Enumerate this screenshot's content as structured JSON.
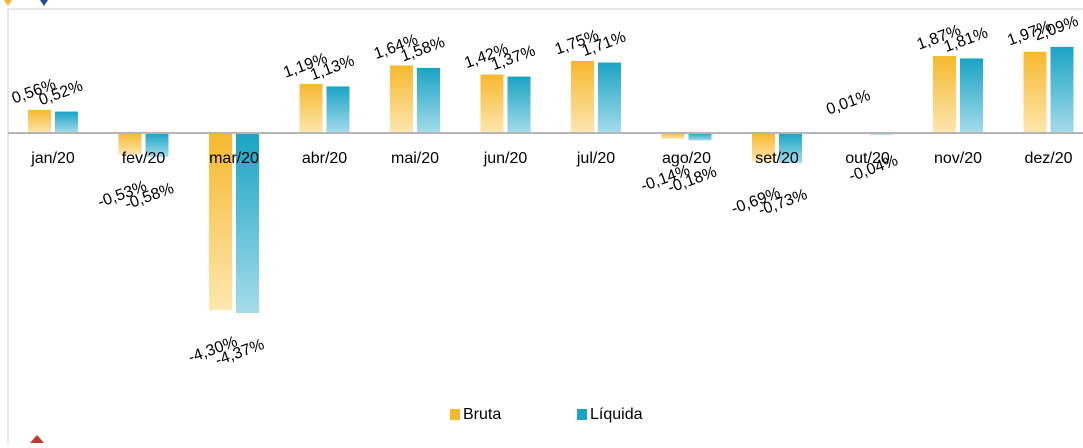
{
  "chart_data": {
    "type": "bar",
    "categories": [
      "jan/20",
      "fev/20",
      "mar/20",
      "abr/20",
      "mai/20",
      "jun/20",
      "jul/20",
      "ago/20",
      "set/20",
      "out/20",
      "nov/20",
      "dez/20"
    ],
    "series": [
      {
        "name": "Bruta",
        "values": [
          0.56,
          -0.53,
          -4.3,
          1.19,
          1.64,
          1.42,
          1.75,
          -0.14,
          -0.69,
          0.01,
          1.87,
          1.97
        ],
        "labels": [
          "0,56%",
          "-0,53%",
          "-4,30%",
          "1,19%",
          "1,64%",
          "1,42%",
          "1,75%",
          "-0,14%",
          "-0,69%",
          "0,01%",
          "1,87%",
          "1,97%"
        ],
        "color": "#f7b82e",
        "color_light": "#fde7b0"
      },
      {
        "name": "Líquida",
        "values": [
          0.52,
          -0.58,
          -4.37,
          1.13,
          1.58,
          1.37,
          1.71,
          -0.18,
          -0.73,
          -0.04,
          1.81,
          2.09
        ],
        "labels": [
          "0,52%",
          "-0,58%",
          "-4,37%",
          "1,13%",
          "1,58%",
          "1,37%",
          "1,71%",
          "-0,18%",
          "-0,73%",
          "-0,04%",
          "1,81%",
          "2,09%"
        ],
        "color": "#1aa3c4",
        "color_light": "#a5dcea"
      }
    ],
    "title": "",
    "xlabel": "",
    "ylabel": "",
    "ylim": [
      -4.5,
      2.2
    ],
    "grid": false,
    "legend": "bottom-center"
  }
}
